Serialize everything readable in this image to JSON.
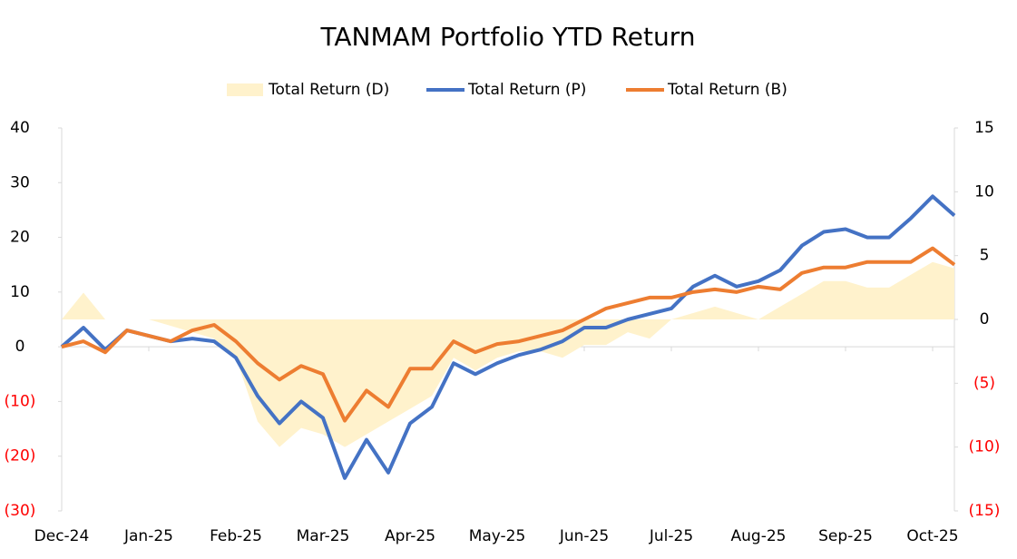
{
  "chart_data": {
    "type": "line",
    "title": "TANMAM Portfolio YTD Return",
    "categories": [
      "Dec-24",
      null,
      null,
      null,
      "Jan-25",
      null,
      null,
      null,
      "Feb-25",
      null,
      null,
      null,
      "Mar-25",
      null,
      null,
      null,
      "Apr-25",
      null,
      null,
      null,
      "May-25",
      null,
      null,
      null,
      "Jun-25",
      null,
      null,
      null,
      "Jul-25",
      null,
      null,
      null,
      "Aug-25",
      null,
      null,
      null,
      "Sep-25",
      null,
      null,
      null,
      "Oct-25",
      null
    ],
    "series": [
      {
        "name": "Total Return (D)",
        "kind": "area",
        "axis": "y2",
        "color": "#fff2cc",
        "values": [
          0,
          2.1,
          0,
          0,
          0,
          -0.5,
          -1,
          -1.5,
          -3,
          -8,
          -10,
          -8.5,
          -9,
          -10,
          -9,
          -8,
          -7,
          -6,
          -3,
          -4,
          -3,
          -2.5,
          -2.5,
          -3,
          -2,
          -2,
          -1,
          -1.5,
          0,
          0.5,
          1,
          0.5,
          0,
          1,
          2,
          3,
          3,
          2.5,
          2.5,
          3.5,
          4.5,
          4
        ]
      },
      {
        "name": "Total Return (P)",
        "kind": "line",
        "color": "#4472c4",
        "values": [
          0,
          3.5,
          -0.5,
          3,
          2,
          1,
          1.5,
          1,
          -2,
          -9,
          -14,
          -10,
          -13,
          -24,
          -17,
          -23,
          -14,
          -11,
          -3,
          -5,
          -3,
          -1.5,
          -0.5,
          1,
          3.5,
          3.5,
          5,
          6,
          7,
          11,
          13,
          11,
          12,
          14,
          18.5,
          21,
          21.5,
          20,
          20,
          23.5,
          27.5,
          24
        ]
      },
      {
        "name": "Total Return (B)",
        "kind": "line",
        "color": "#ed7d31",
        "values": [
          0,
          1,
          -1,
          3,
          2,
          1,
          3,
          4,
          1,
          -3,
          -6,
          -3.5,
          -5,
          -13.5,
          -8,
          -11,
          -4,
          -4,
          1,
          -1,
          0.5,
          1,
          2,
          3,
          5,
          7,
          8,
          9,
          9,
          10,
          10.5,
          10,
          11,
          10.5,
          13.5,
          14.5,
          14.5,
          15.5,
          15.5,
          15.5,
          18,
          15
        ]
      }
    ],
    "ylim": [
      -30,
      40
    ],
    "yticks": [
      {
        "value": -30,
        "label": "(30)"
      },
      {
        "value": -20,
        "label": "(20)"
      },
      {
        "value": -10,
        "label": "(10)"
      },
      0,
      10,
      20,
      30,
      40
    ],
    "y2lim": [
      -15,
      15
    ],
    "y2ticks": [
      {
        "value": -15,
        "label": "(15)"
      },
      {
        "value": -10,
        "label": "(10)"
      },
      {
        "value": -5,
        "label": "(5)"
      },
      0,
      5,
      10,
      15
    ],
    "negative_label_color": "#ff0000",
    "legend": "top"
  }
}
